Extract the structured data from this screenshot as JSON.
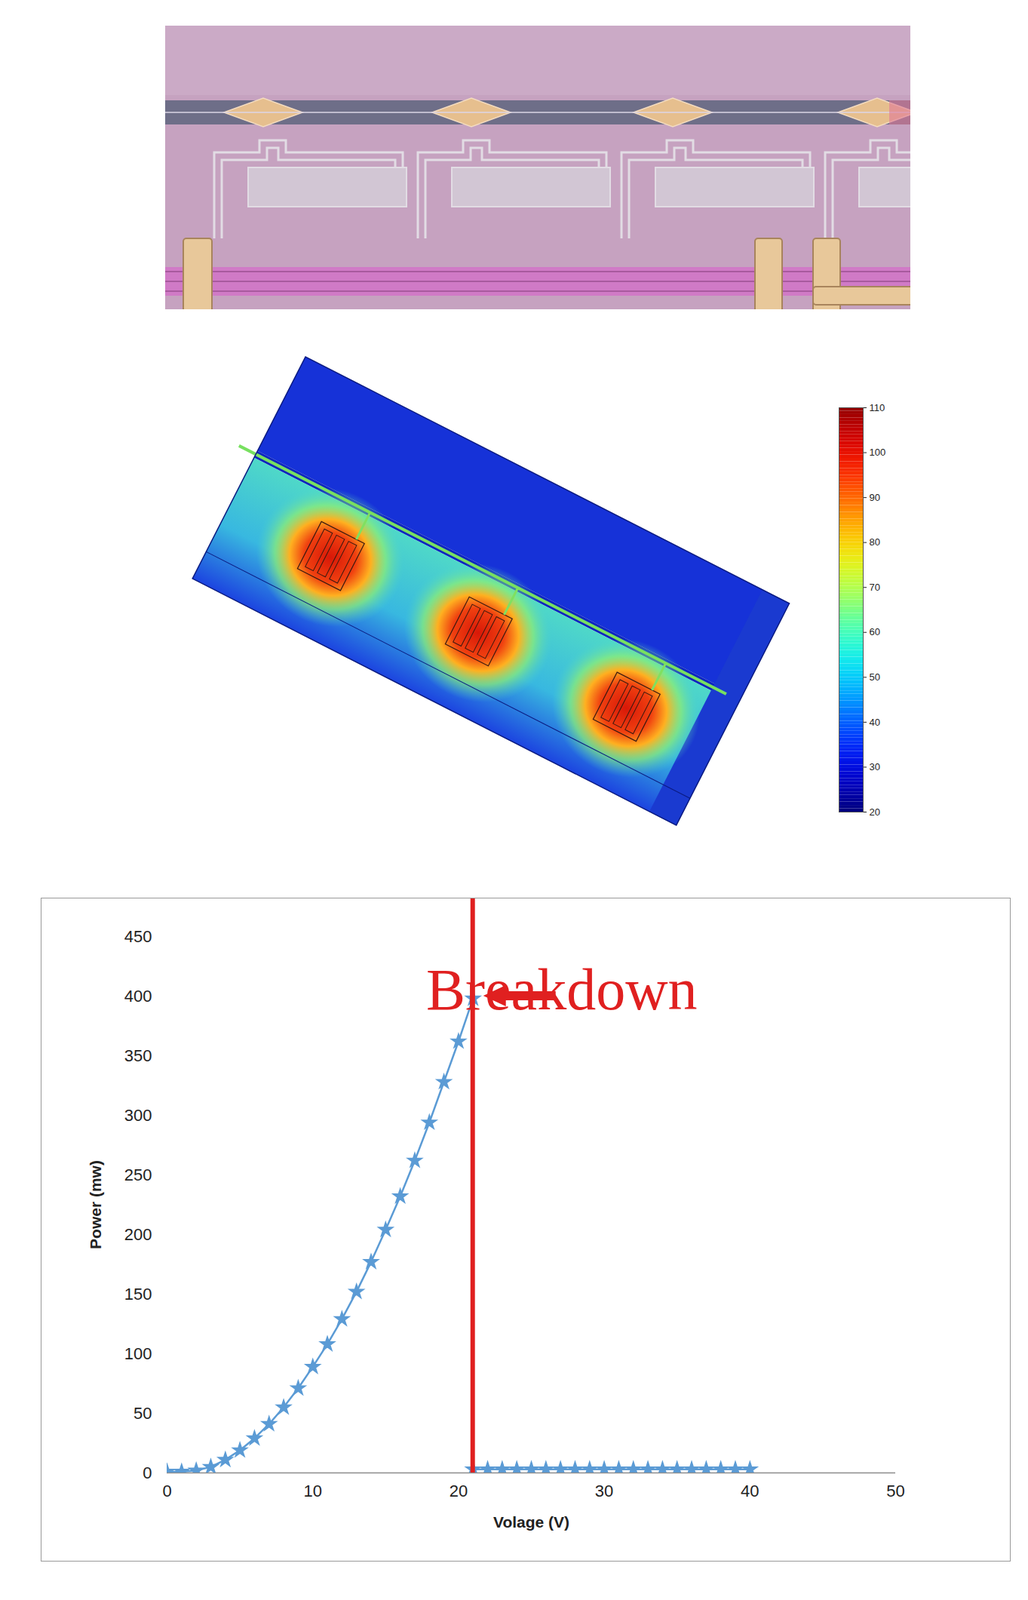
{
  "chart_data": [
    {
      "type": "heatmap",
      "colorbar": {
        "range": [
          20,
          110
        ],
        "ticks": [
          20,
          30,
          40,
          50,
          60,
          70,
          80,
          90,
          100,
          110
        ]
      }
    },
    {
      "type": "line",
      "x": [
        0,
        1,
        2,
        3,
        4,
        5,
        6,
        7,
        8,
        9,
        10,
        11,
        12,
        13,
        14,
        15,
        16,
        17,
        18,
        19,
        20,
        21,
        21,
        22,
        23,
        24,
        25,
        26,
        27,
        28,
        29,
        30,
        31,
        32,
        33,
        34,
        35,
        36,
        37,
        38,
        39,
        40
      ],
      "values": [
        1,
        1,
        2,
        5,
        11,
        19,
        29,
        41,
        55,
        71,
        89,
        108,
        129,
        152,
        177,
        204,
        232,
        262,
        294,
        328,
        362,
        398,
        3,
        3,
        3,
        3,
        3,
        3,
        3,
        3,
        3,
        3,
        3,
        3,
        3,
        3,
        3,
        3,
        3,
        3,
        3,
        3
      ],
      "color": "#5b9bd5",
      "marker": "star",
      "x_label": "Volage (V)",
      "y_label": "Power (mw)",
      "xlim": [
        0,
        50
      ],
      "ylim": [
        0,
        450
      ],
      "xticks": [
        0,
        10,
        20,
        30,
        40,
        50
      ],
      "yticks": [
        0,
        50,
        100,
        150,
        200,
        250,
        300,
        350,
        400,
        450
      ],
      "grid": false,
      "annotations": [
        {
          "text": "Breakdown",
          "x": 21,
          "y": 400
        }
      ]
    }
  ]
}
